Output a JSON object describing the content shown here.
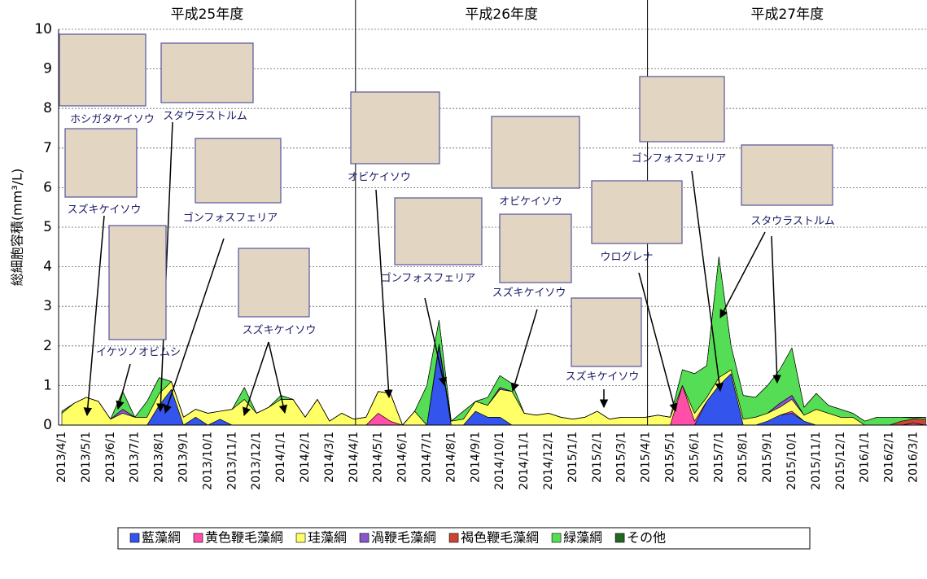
{
  "chart_data": {
    "type": "stacked-area",
    "ylabel": "総細胞容積(mm³/L)",
    "periods": [
      "平成25年度",
      "平成26年度",
      "平成27年度"
    ],
    "categories": [
      "2013/4/1",
      null,
      "2013/5/1",
      null,
      "2013/6/1",
      null,
      "2013/7/1",
      null,
      "2013/8/1",
      null,
      "2013/9/1",
      null,
      "2013/10/1",
      null,
      "2013/11/1",
      null,
      "2013/12/1",
      null,
      "2014/1/1",
      null,
      "2014/2/1",
      null,
      "2014/3/1",
      null,
      "2014/4/1",
      null,
      "2014/5/1",
      null,
      "2014/6/1",
      null,
      "2014/7/1",
      null,
      "2014/8/1",
      null,
      "2014/9/1",
      null,
      "2014/10/1",
      null,
      "2014/11/1",
      null,
      "2014/12/1",
      null,
      "2015/1/1",
      null,
      "2015/2/1",
      null,
      "2015/3/1",
      null,
      "2015/4/1",
      null,
      "2015/5/1",
      null,
      "2015/6/1",
      null,
      "2015/7/1",
      null,
      "2015/8/1",
      null,
      "2015/9/1",
      null,
      "2015/10/1",
      null,
      "2015/11/1",
      null,
      "2015/12/1",
      null,
      "2016/1/1",
      null,
      "2016/2/1",
      null,
      "2016/3/1",
      null
    ],
    "series": [
      {
        "name": "藍藻綱",
        "color": "#3355ee",
        "values": [
          0,
          0,
          0,
          0,
          0,
          0,
          0,
          0,
          0.5,
          0.9,
          0,
          0.2,
          0,
          0.15,
          0,
          0,
          0,
          0,
          0,
          0,
          0,
          0,
          0,
          0,
          0,
          0,
          0,
          0,
          0,
          0,
          0,
          2.0,
          0,
          0,
          0.35,
          0.2,
          0.2,
          0,
          0,
          0,
          0,
          0,
          0,
          0,
          0,
          0,
          0,
          0,
          0,
          0,
          0,
          0,
          0,
          0.6,
          1.0,
          1.3,
          0,
          0,
          0.1,
          0.25,
          0.3,
          0.1,
          0,
          0,
          0,
          0,
          0,
          0,
          0,
          0,
          0,
          0
        ]
      },
      {
        "name": "黄色鞭毛藻綱",
        "color": "#ff4fa8",
        "values": [
          0,
          0,
          0,
          0,
          0,
          0,
          0,
          0,
          0,
          0,
          0,
          0,
          0,
          0,
          0,
          0,
          0,
          0,
          0,
          0,
          0,
          0,
          0,
          0,
          0,
          0,
          0.3,
          0.1,
          0,
          0,
          0,
          0,
          0,
          0,
          0,
          0,
          0,
          0,
          0,
          0,
          0,
          0,
          0,
          0,
          0,
          0,
          0,
          0,
          0,
          0,
          0,
          1.0,
          0.1,
          0,
          0,
          0,
          0,
          0,
          0,
          0,
          0.05,
          0,
          0,
          0,
          0,
          0,
          0,
          0,
          0,
          0,
          0.05,
          0
        ]
      },
      {
        "name": "珪藻綱",
        "color": "#ffff66",
        "values": [
          0.3,
          0.55,
          0.7,
          0.6,
          0.15,
          0.3,
          0.2,
          0.2,
          0.3,
          0.2,
          0.2,
          0.2,
          0.3,
          0.2,
          0.4,
          0.65,
          0.3,
          0.45,
          0.65,
          0.65,
          0.2,
          0.65,
          0.1,
          0.3,
          0.15,
          0.2,
          0.55,
          0.7,
          0,
          0.35,
          0,
          0.05,
          0.1,
          0.15,
          0.25,
          0.3,
          0.7,
          0.85,
          0.3,
          0.25,
          0.3,
          0.2,
          0.15,
          0.2,
          0.35,
          0.15,
          0.2,
          0.2,
          0.2,
          0.25,
          0.2,
          0,
          0.2,
          0.1,
          0.2,
          0.1,
          0.15,
          0.2,
          0.2,
          0.2,
          0.3,
          0.15,
          0.4,
          0.3,
          0.2,
          0.2,
          0,
          0,
          0,
          0,
          0,
          0
        ]
      },
      {
        "name": "渦鞭毛藻綱",
        "color": "#8855cc",
        "values": [
          0,
          0,
          0,
          0,
          0,
          0.1,
          0,
          0,
          0,
          0,
          0,
          0,
          0,
          0,
          0,
          0,
          0,
          0,
          0,
          0,
          0,
          0,
          0,
          0,
          0,
          0,
          0,
          0,
          0,
          0,
          0,
          0,
          0,
          0,
          0,
          0,
          0.05,
          0,
          0,
          0,
          0,
          0,
          0,
          0,
          0,
          0,
          0,
          0,
          0,
          0,
          0,
          0,
          0,
          0,
          0,
          0,
          0,
          0,
          0,
          0.1,
          0.1,
          0,
          0,
          0,
          0,
          0,
          0,
          0,
          0,
          0,
          0,
          0
        ]
      },
      {
        "name": "褐色鞭毛藻綱",
        "color": "#cc4433",
        "values": [
          0,
          0,
          0,
          0,
          0,
          0,
          0,
          0,
          0,
          0,
          0,
          0,
          0,
          0,
          0,
          0,
          0,
          0,
          0,
          0,
          0,
          0,
          0,
          0,
          0,
          0,
          0,
          0,
          0,
          0,
          0,
          0,
          0,
          0,
          0,
          0,
          0,
          0,
          0,
          0,
          0,
          0,
          0,
          0,
          0,
          0,
          0,
          0,
          0,
          0,
          0,
          0,
          0,
          0,
          0,
          0,
          0,
          0,
          0,
          0,
          0,
          0,
          0,
          0,
          0,
          0,
          0,
          0,
          0,
          0.1,
          0.1,
          0.15
        ]
      },
      {
        "name": "緑藻綱",
        "color": "#55dd55",
        "values": [
          0.05,
          0,
          0,
          0,
          0,
          0.45,
          0,
          0.4,
          0.4,
          0,
          0,
          0,
          0,
          0,
          0,
          0.3,
          0,
          0,
          0.1,
          0,
          0,
          0,
          0,
          0,
          0,
          0,
          0,
          0,
          0,
          0,
          1.0,
          0.6,
          0,
          0.2,
          0,
          0.2,
          0.3,
          0.2,
          0,
          0,
          0,
          0,
          0,
          0,
          0,
          0,
          0,
          0,
          0,
          0,
          0,
          0.4,
          1.0,
          0.8,
          3.05,
          0.6,
          0.6,
          0.5,
          0.7,
          0.85,
          1.2,
          0.2,
          0.4,
          0.2,
          0.2,
          0.1,
          0.1,
          0.2,
          0.2,
          0.1,
          0.03,
          0.05
        ]
      },
      {
        "name": "その他",
        "color": "#226622",
        "values": [
          0,
          0,
          0,
          0,
          0,
          0,
          0,
          0,
          0,
          0,
          0,
          0,
          0,
          0,
          0,
          0,
          0,
          0,
          0,
          0,
          0,
          0,
          0,
          0,
          0,
          0,
          0,
          0,
          0,
          0,
          0,
          0,
          0,
          0,
          0,
          0,
          0,
          0,
          0,
          0,
          0,
          0,
          0,
          0,
          0,
          0,
          0,
          0,
          0,
          0,
          0,
          0,
          0,
          0,
          0,
          0,
          0,
          0,
          0,
          0,
          0,
          0,
          0,
          0,
          0,
          0,
          0,
          0,
          0,
          0,
          0.02,
          0
        ]
      }
    ],
    "ylim": [
      0,
      10
    ],
    "yticks": [
      0,
      1,
      2,
      3,
      4,
      5,
      6,
      7,
      8,
      9,
      10
    ],
    "grid": true,
    "annotations": [
      "ホシガタケイソウ",
      "スタウラストルム",
      "スズキケイソウ",
      "ゴンフォスフェリア",
      "イケツノオビムシ",
      "スズキケイソウ",
      "オビケイソウ",
      "ゴンフォスフェリア",
      "オビケイソウ",
      "スズキケイソウ",
      "ウログレナ",
      "スズキケイソウ",
      "ゴンフォスフェリア",
      "スタウラストルム"
    ]
  }
}
